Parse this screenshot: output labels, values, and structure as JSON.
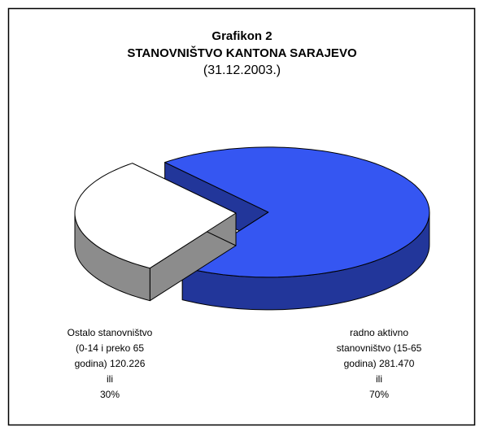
{
  "chart_data": {
    "type": "pie",
    "title": "Grafikon 2",
    "subtitle": "STANOVNIŠTVO KANTONA SARAJEVO",
    "date": "(31.12.2003.)",
    "categories": [
      "radno aktivno stanovništvo (15-65 godina)",
      "Ostalo stanovništvo (0-14 i preko 65 godina)"
    ],
    "values": [
      281470,
      120226
    ],
    "value_labels": [
      "281.470",
      "120.226"
    ],
    "percents": [
      70,
      30
    ],
    "percent_labels": [
      "70%",
      "30%"
    ],
    "joiner": "ili",
    "colors": [
      "#3556f2",
      "#ffffff"
    ],
    "side_colors": [
      "#22369a",
      "#8c8c8c"
    ],
    "exploded": [
      true,
      false
    ]
  }
}
